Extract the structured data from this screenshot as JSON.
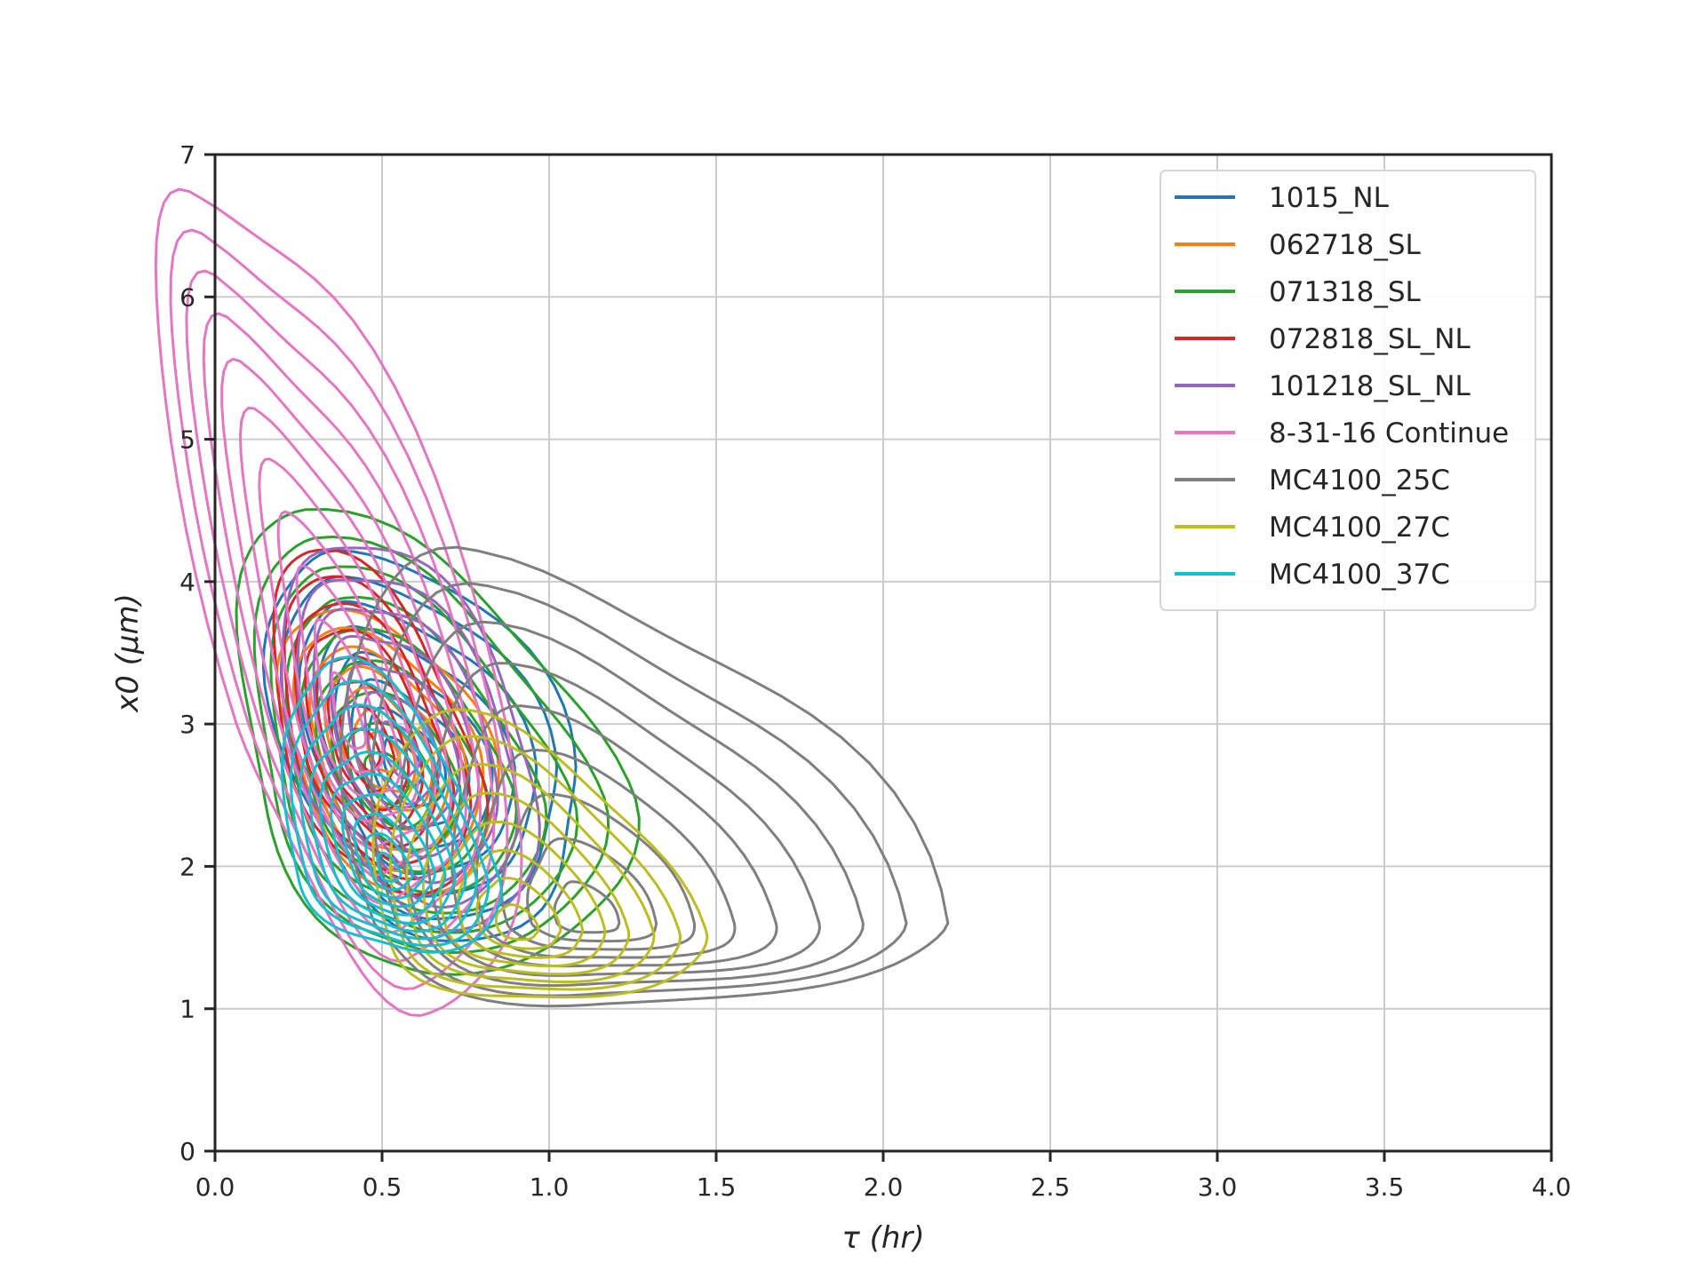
{
  "chart_data": {
    "type": "kde_contour",
    "xlabel": "τ (hr)",
    "ylabel": "x0 (μm)",
    "xlim": [
      0.0,
      4.0
    ],
    "ylim": [
      0,
      7
    ],
    "x_ticks": [
      "0.0",
      "0.5",
      "1.0",
      "1.5",
      "2.0",
      "2.5",
      "3.0",
      "3.5",
      "4.0"
    ],
    "y_ticks": [
      "0",
      "1",
      "2",
      "3",
      "4",
      "5",
      "6",
      "7"
    ],
    "grid": true,
    "legend_position": "upper right",
    "series": [
      {
        "name": "1015_NL",
        "color": "#1f77b4",
        "center": [
          0.55,
          2.7
        ],
        "outer_x_range": [
          0.22,
          1.08
        ],
        "outer_y_range": [
          1.5,
          4.25
        ],
        "levels": 8
      },
      {
        "name": "062718_SL",
        "color": "#ff7f0e",
        "center": [
          0.5,
          2.8
        ],
        "outer_x_range": [
          0.22,
          0.82
        ],
        "outer_y_range": [
          1.8,
          3.8
        ],
        "levels": 7
      },
      {
        "name": "071318_SL",
        "color": "#2ca02c",
        "center": [
          0.5,
          2.6
        ],
        "outer_x_range": [
          0.12,
          1.2
        ],
        "outer_y_range": [
          1.2,
          4.45
        ],
        "levels": 9
      },
      {
        "name": "072818_SL_NL",
        "color": "#d62728",
        "center": [
          0.45,
          2.8
        ],
        "outer_x_range": [
          0.22,
          0.78
        ],
        "outer_y_range": [
          1.8,
          4.2
        ],
        "levels": 8
      },
      {
        "name": "101218_SL_NL",
        "color": "#9467bd",
        "center": [
          0.55,
          2.8
        ],
        "outer_x_range": [
          0.25,
          0.95
        ],
        "outer_y_range": [
          1.6,
          4.3
        ],
        "levels": 7
      },
      {
        "name": "8-31-16 Continue",
        "color": "#e377c2",
        "center": [
          0.4,
          3.0
        ],
        "outer_x_range": [
          0.07,
          0.88
        ],
        "outer_y_range": [
          1.05,
          6.85
        ],
        "levels": 11
      },
      {
        "name": "MC4100_25C",
        "color": "#7f7f7f",
        "center": [
          1.1,
          1.6
        ],
        "outer_x_range": [
          0.45,
          2.15
        ],
        "outer_y_range": [
          1.02,
          4.15
        ],
        "levels": 9
      },
      {
        "name": "MC4100_27C",
        "color": "#bcbd22",
        "center": [
          0.9,
          1.55
        ],
        "outer_x_range": [
          0.5,
          1.45
        ],
        "outer_y_range": [
          1.05,
          3.0
        ],
        "levels": 8
      },
      {
        "name": "MC4100_37C",
        "color": "#17becf",
        "center": [
          0.52,
          1.95
        ],
        "outer_x_range": [
          0.25,
          0.85
        ],
        "outer_y_range": [
          1.4,
          3.4
        ],
        "levels": 10
      }
    ]
  }
}
